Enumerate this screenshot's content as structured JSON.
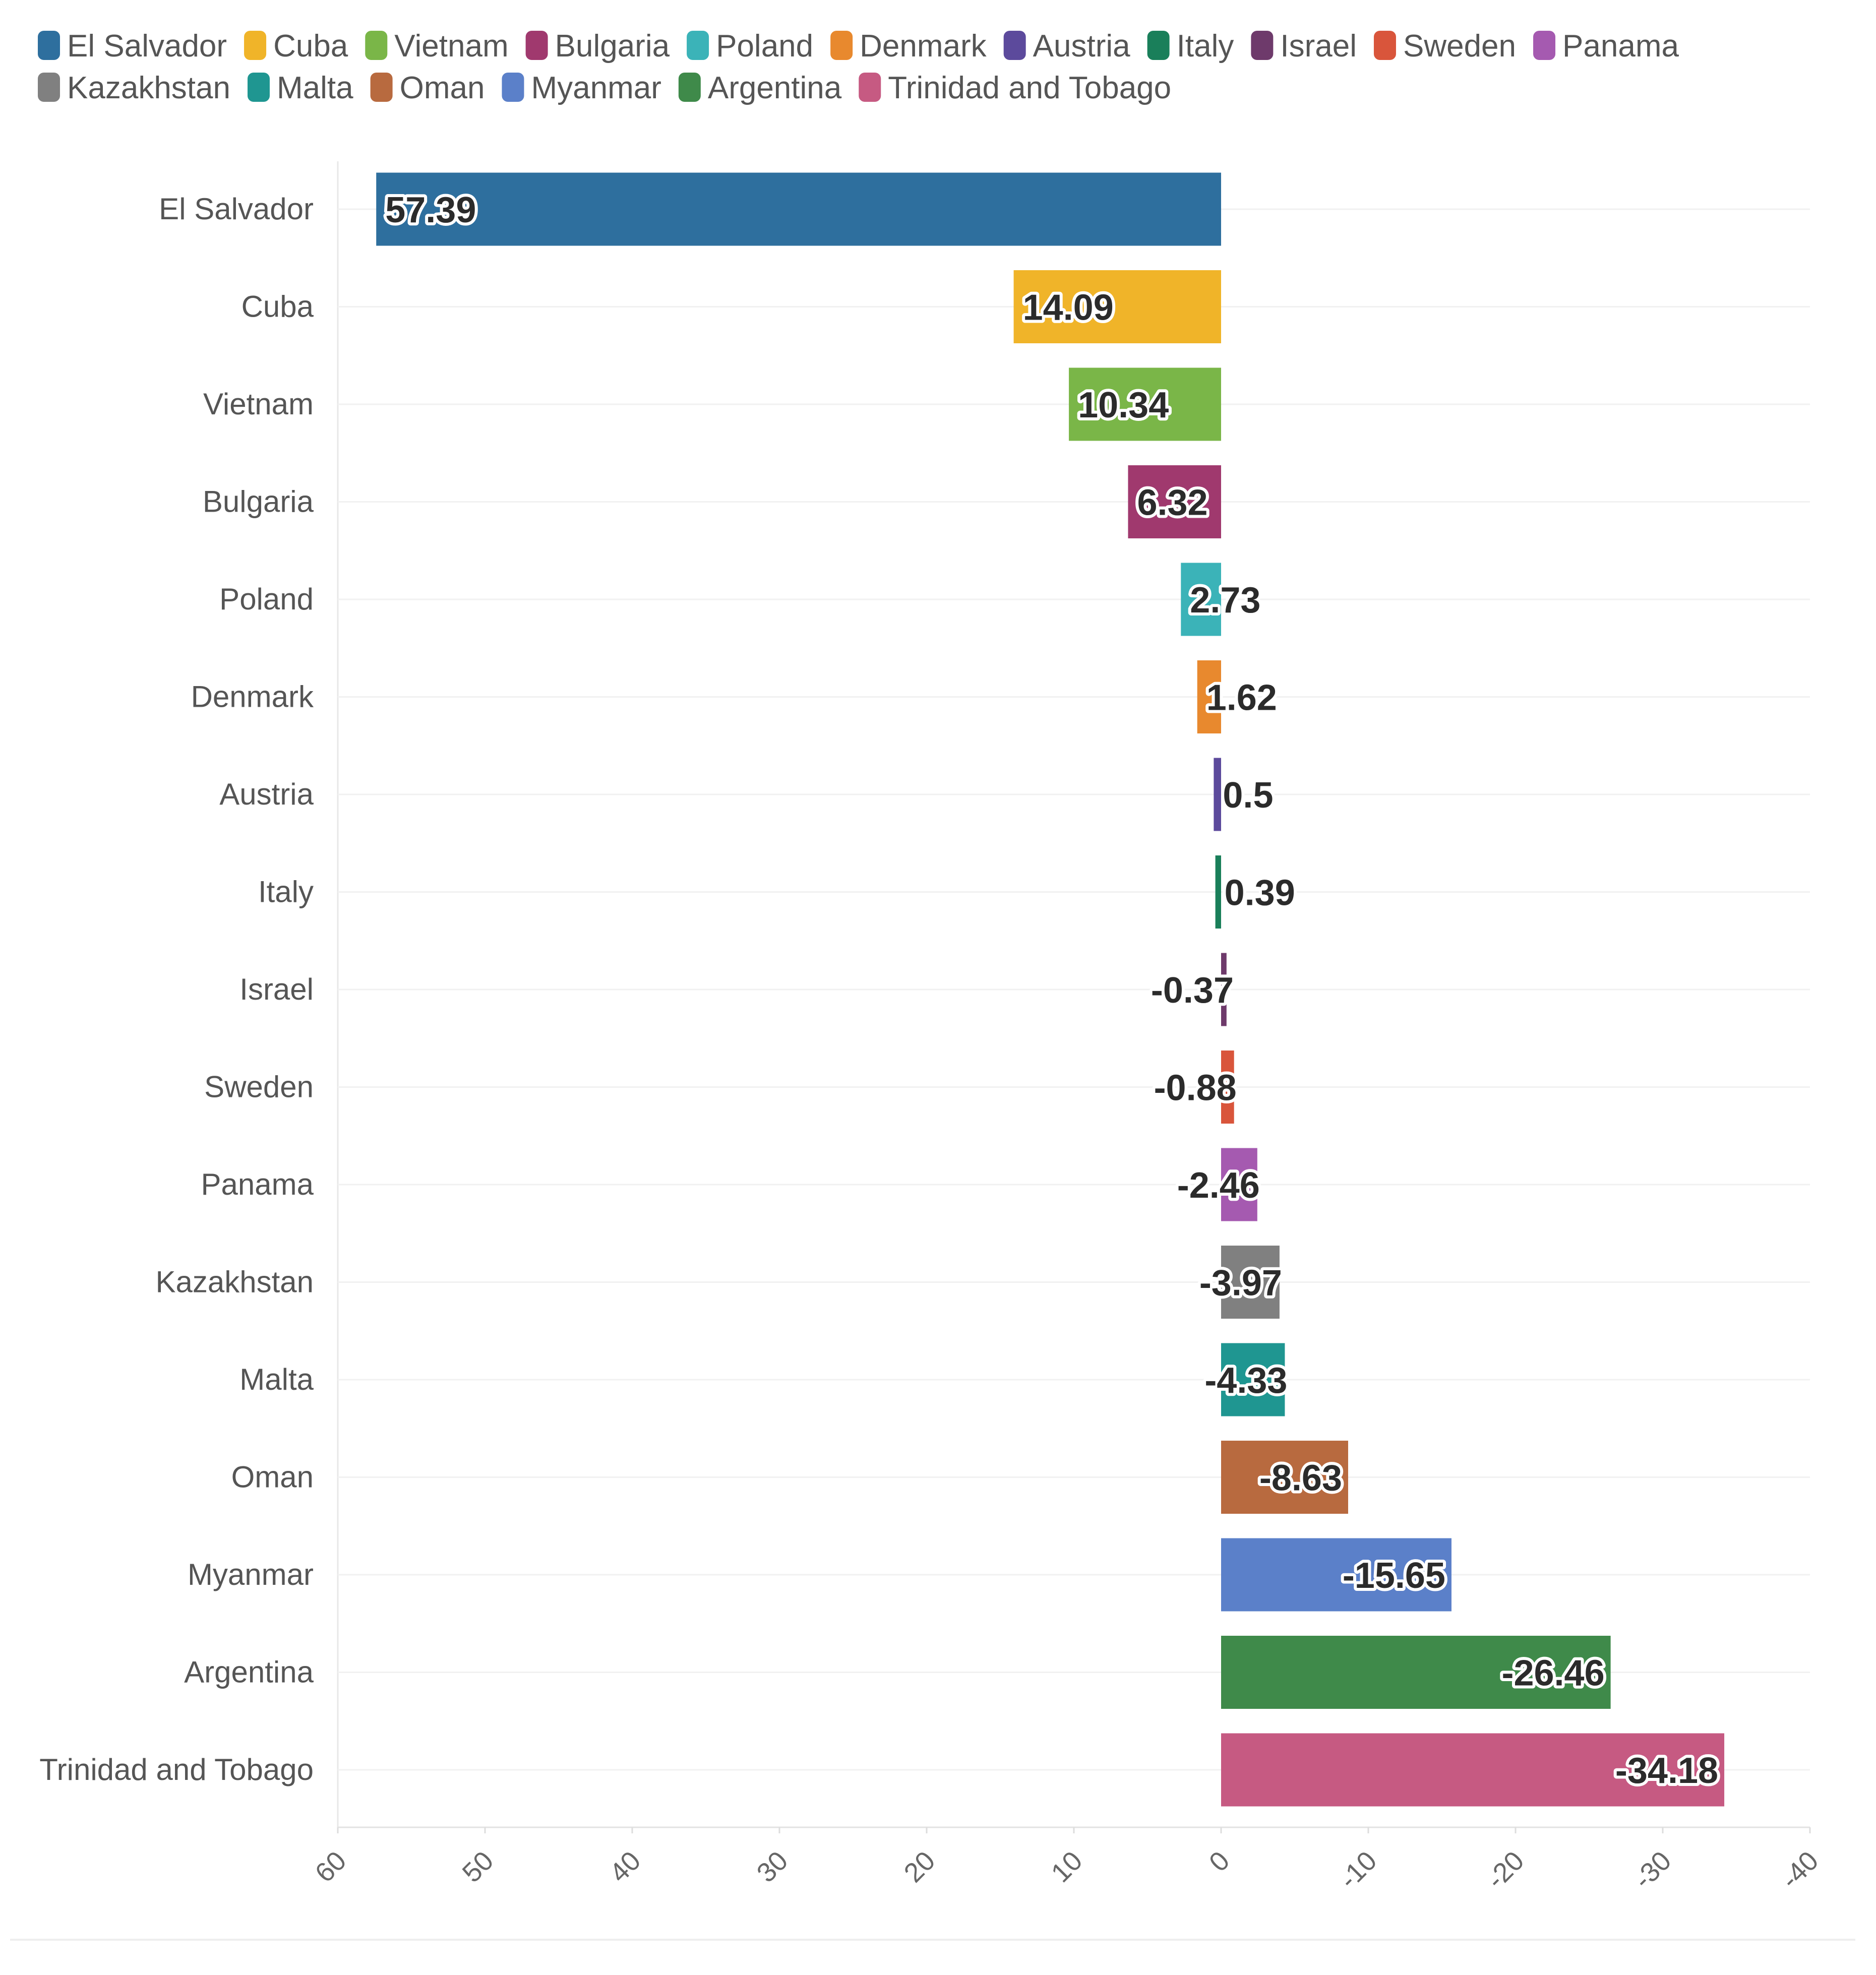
{
  "chart_data": {
    "type": "bar",
    "orientation": "horizontal",
    "x_axis_reversed": true,
    "categories": [
      "El Salvador",
      "Cuba",
      "Vietnam",
      "Bulgaria",
      "Poland",
      "Denmark",
      "Austria",
      "Italy",
      "Israel",
      "Sweden",
      "Panama",
      "Kazakhstan",
      "Malta",
      "Oman",
      "Myanmar",
      "Argentina",
      "Trinidad and Tobago"
    ],
    "values": [
      57.39,
      14.09,
      10.34,
      6.32,
      2.73,
      1.62,
      0.5,
      0.39,
      -0.37,
      -0.88,
      -2.46,
      -3.97,
      -4.33,
      -8.63,
      -15.65,
      -26.46,
      -34.18
    ],
    "value_labels": [
      "57.39",
      "14.09",
      "10.34",
      "6.32",
      "2.73",
      "1.62",
      "0.5",
      "0.39",
      "-0.37",
      "-0.88",
      "-2.46",
      "-3.97",
      "-4.33",
      "-8.63",
      "-15.65",
      "-26.46",
      "-34.18"
    ],
    "colors": [
      "#2e6f9e",
      "#f0b429",
      "#7ab648",
      "#a0396e",
      "#3bb3b8",
      "#e8892e",
      "#5c4a9c",
      "#1a7f5a",
      "#6e3a6b",
      "#d9553b",
      "#a55ab0",
      "#808080",
      "#1f9691",
      "#b86a3f",
      "#5b80c9",
      "#3f8a4a",
      "#c65a82"
    ],
    "legend": {
      "position": "top-left",
      "entries": [
        "El Salvador",
        "Cuba",
        "Vietnam",
        "Bulgaria",
        "Poland",
        "Denmark",
        "Austria",
        "Italy",
        "Israel",
        "Sweden",
        "Panama",
        "Kazakhstan",
        "Malta",
        "Oman",
        "Myanmar",
        "Argentina",
        "Trinidad and Tobago"
      ]
    },
    "x_ticks": [
      60,
      50,
      40,
      30,
      20,
      10,
      0,
      -10,
      -20,
      -30,
      -40
    ],
    "x_tick_labels": [
      "60",
      "50",
      "40",
      "30",
      "20",
      "10",
      "0",
      "-10",
      "-20",
      "-30",
      "-40"
    ],
    "xlim": [
      60,
      -40
    ],
    "title": "",
    "xlabel": "",
    "ylabel": "",
    "grid": true
  }
}
